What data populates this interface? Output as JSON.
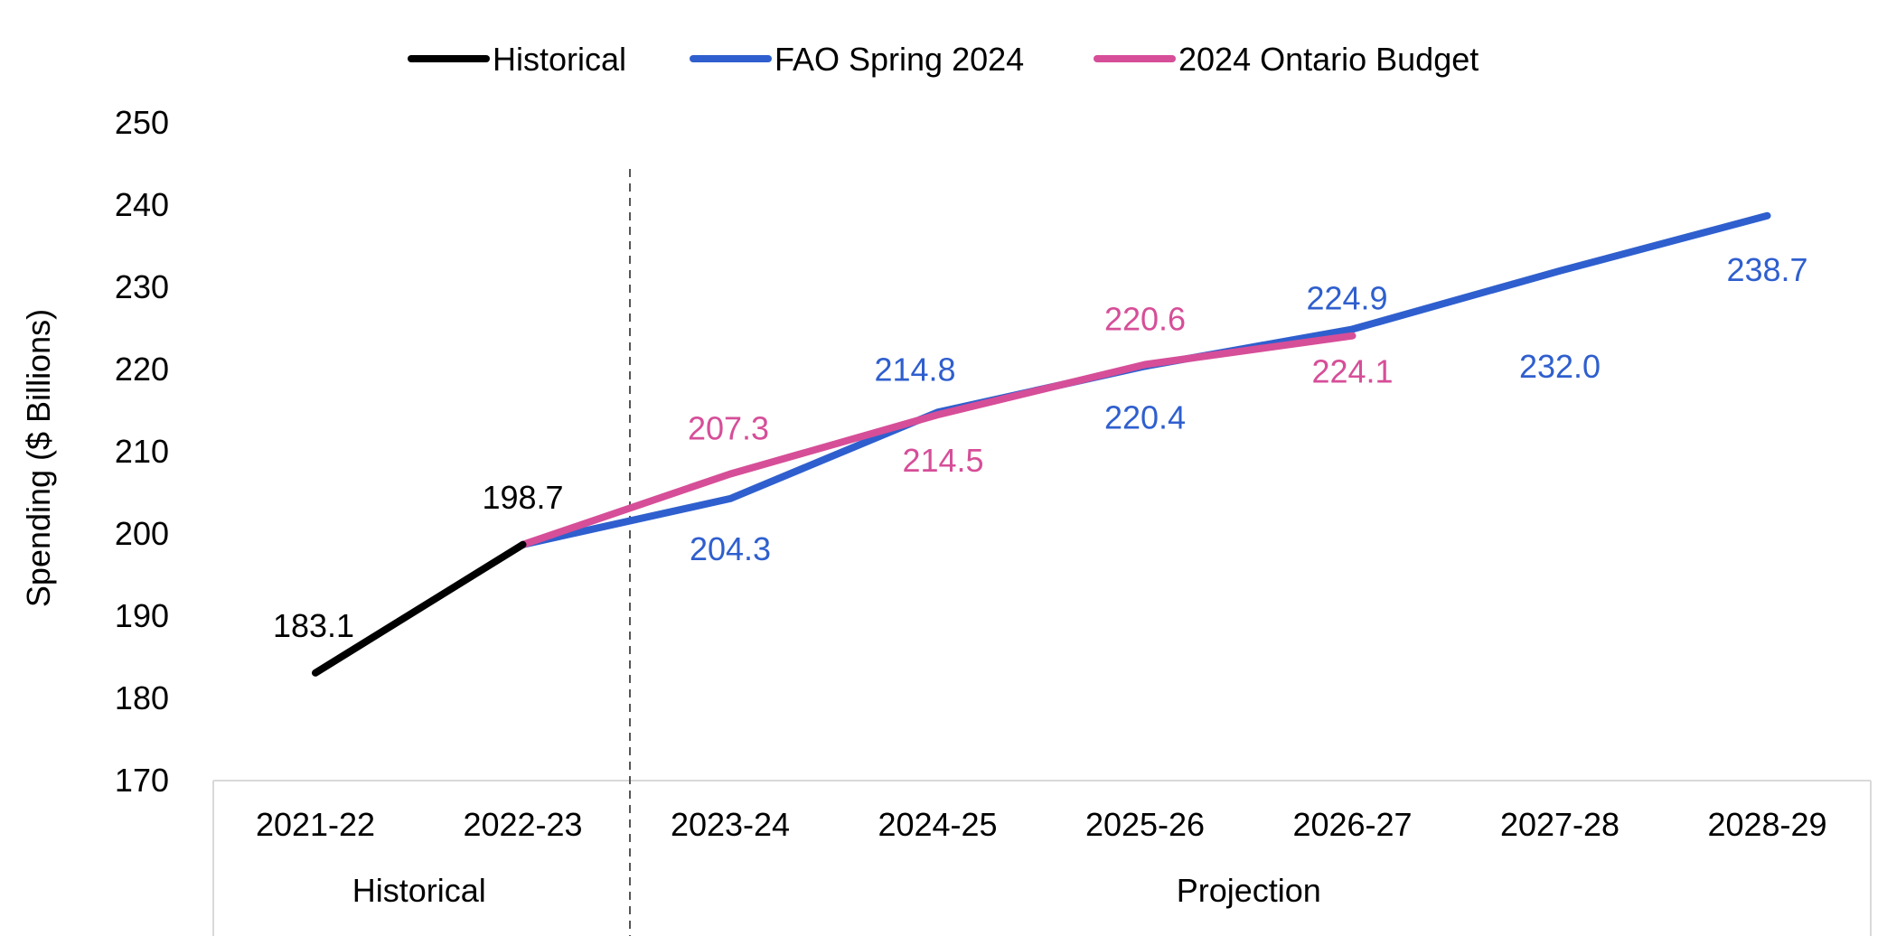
{
  "chart_data": {
    "type": "line",
    "title": "",
    "xlabel": "",
    "ylabel": "Spending ($ Billions)",
    "ylim": [
      170,
      250
    ],
    "yticks": [
      "250",
      "240",
      "230",
      "220",
      "210",
      "200",
      "190",
      "180",
      "170"
    ],
    "categories": [
      "2021-22",
      "2022-23",
      "2023-24",
      "2024-25",
      "2025-26",
      "2026-27",
      "2027-28",
      "2028-29"
    ],
    "groups": [
      {
        "label": "Historical",
        "start": 0,
        "end": 1
      },
      {
        "label": "Projection",
        "start": 2,
        "end": 7
      }
    ],
    "divider": "between 2022-23 and 2023-24",
    "legend_position": "top-center",
    "grid": false,
    "series": [
      {
        "name": "Historical",
        "color": "#000000",
        "values": [
          183.1,
          198.7,
          null,
          null,
          null,
          null,
          null,
          null
        ],
        "labels": [
          "183.1",
          "198.7",
          null,
          null,
          null,
          null,
          null,
          null
        ]
      },
      {
        "name": "FAO Spring 2024",
        "color": "#2F5FCE",
        "values": [
          null,
          198.7,
          204.3,
          214.8,
          220.4,
          224.9,
          232.0,
          238.7
        ],
        "labels": [
          null,
          null,
          "204.3",
          "214.8",
          "220.4",
          "224.9",
          "232.0",
          "238.7"
        ]
      },
      {
        "name": "2024 Ontario Budget",
        "color": "#D64E98",
        "values": [
          null,
          198.7,
          207.3,
          214.5,
          220.6,
          224.1,
          null,
          null
        ],
        "labels": [
          null,
          null,
          "207.3",
          "214.5",
          "220.6",
          "224.1",
          null,
          null
        ]
      }
    ]
  }
}
